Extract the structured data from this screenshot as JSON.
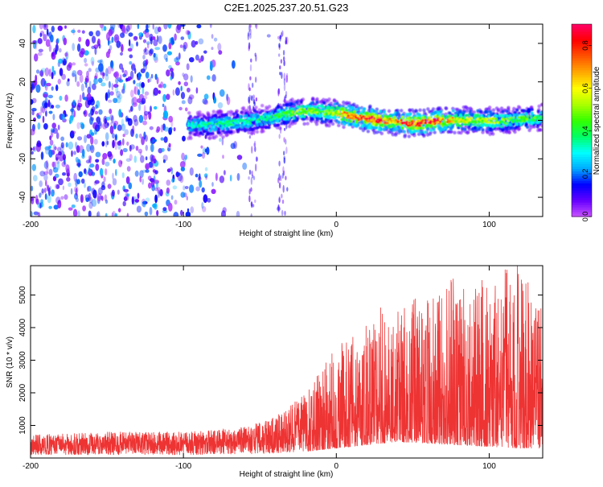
{
  "title": "C2E1.2025.237.20.51.G23",
  "colors": {
    "snr_line": "#ee3333",
    "fill_low": "#7a22ee",
    "axis": "#000000"
  },
  "chart_data": [
    {
      "type": "heatmap",
      "name": "spectrogram",
      "xlabel": "Height of straight line (km)",
      "ylabel": "Frequency (Hz)",
      "xlim": [
        -200,
        135
      ],
      "ylim": [
        -50,
        50
      ],
      "x_ticks": [
        -200,
        -100,
        0,
        100
      ],
      "x_tick_labels": [
        "-200",
        "-100",
        "0",
        "100"
      ],
      "y_ticks": [
        -40,
        -20,
        0,
        20,
        40
      ],
      "y_tick_labels": [
        "-40",
        "-20",
        "0",
        "20",
        "40"
      ],
      "colorbar": {
        "label": "Normalized spectral amplitude",
        "range": [
          0,
          0.9
        ],
        "ticks": [
          0,
          0.2,
          0.4,
          0.6,
          0.8
        ],
        "tick_labels": [
          "0.0",
          "0.2",
          "0.4",
          "0.6",
          "0.8"
        ],
        "colormap": [
          "#cc55ff",
          "#6600ff",
          "#0000ff",
          "#00aaff",
          "#00ffff",
          "#00ff66",
          "#33ff00",
          "#aaff00",
          "#ffff00",
          "#ffaa00",
          "#ff5500",
          "#ff0000",
          "#ff0066"
        ]
      },
      "trace": {
        "x": [
          -95,
          -85,
          -75,
          -65,
          -55,
          -45,
          -35,
          -25,
          -15,
          -5,
          0,
          5,
          15,
          25,
          35,
          45,
          55,
          65,
          75,
          85,
          95,
          105,
          115,
          125,
          135
        ],
        "frequency": [
          -2.5,
          -2.5,
          -2,
          -1,
          0,
          1,
          3,
          4.5,
          5,
          4,
          4,
          3,
          1.5,
          0.5,
          -0.5,
          -1.5,
          -1.5,
          -0.5,
          0,
          0,
          0,
          -0.5,
          0,
          1,
          1.5
        ],
        "peak_amplitude": [
          0.35,
          0.4,
          0.4,
          0.4,
          0.4,
          0.4,
          0.45,
          0.55,
          0.55,
          0.55,
          0.6,
          0.75,
          0.85,
          0.9,
          0.75,
          0.85,
          0.85,
          0.85,
          0.7,
          0.6,
          0.6,
          0.55,
          0.5,
          0.5,
          0.45
        ]
      },
      "noise_region": [
        -200,
        -60
      ]
    },
    {
      "type": "line",
      "name": "snr",
      "xlabel": "Height of straight line (km)",
      "ylabel": "SNR (10 * v/v)",
      "xlim": [
        -200,
        135
      ],
      "ylim": [
        0,
        5900
      ],
      "x_ticks": [
        -200,
        -100,
        0,
        100
      ],
      "x_tick_labels": [
        "-200",
        "-100",
        "0",
        "100"
      ],
      "y_ticks": [
        1000,
        2000,
        3000,
        4000,
        5000
      ],
      "y_tick_labels": [
        "1000",
        "2000",
        "3000",
        "4000",
        "5000"
      ],
      "envelope": {
        "x": [
          -200,
          -150,
          -100,
          -60,
          -40,
          -20,
          0,
          20,
          40,
          60,
          80,
          100,
          120,
          135
        ],
        "upper": [
          700,
          800,
          800,
          950,
          1250,
          2000,
          3400,
          4300,
          5000,
          5100,
          5800,
          5900,
          5900,
          5300
        ],
        "lower": [
          100,
          100,
          100,
          120,
          150,
          200,
          300,
          400,
          500,
          450,
          400,
          350,
          300,
          300
        ]
      }
    }
  ]
}
